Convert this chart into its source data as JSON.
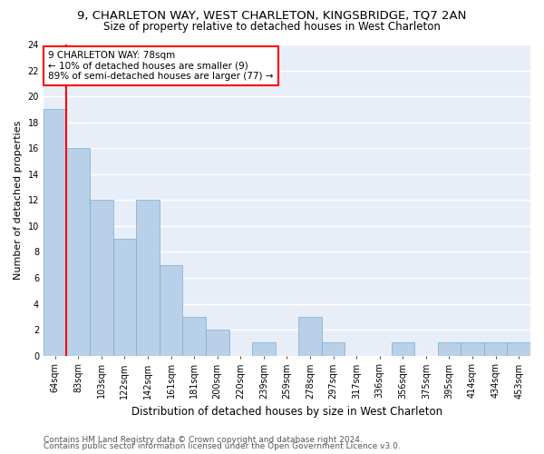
{
  "title1": "9, CHARLETON WAY, WEST CHARLETON, KINGSBRIDGE, TQ7 2AN",
  "title2": "Size of property relative to detached houses in West Charleton",
  "xlabel": "Distribution of detached houses by size in West Charleton",
  "ylabel": "Number of detached properties",
  "categories": [
    "64sqm",
    "83sqm",
    "103sqm",
    "122sqm",
    "142sqm",
    "161sqm",
    "181sqm",
    "200sqm",
    "220sqm",
    "239sqm",
    "259sqm",
    "278sqm",
    "297sqm",
    "317sqm",
    "336sqm",
    "356sqm",
    "375sqm",
    "395sqm",
    "414sqm",
    "434sqm",
    "453sqm"
  ],
  "values": [
    19,
    16,
    12,
    9,
    12,
    7,
    3,
    2,
    0,
    1,
    0,
    3,
    1,
    0,
    0,
    1,
    0,
    1,
    1,
    1,
    1
  ],
  "bar_color": "#b8d0e8",
  "bar_edgecolor": "#7aadd4",
  "bg_color": "#e8eef8",
  "grid_color": "#ffffff",
  "annotation_text": "9 CHARLETON WAY: 78sqm\n← 10% of detached houses are smaller (9)\n89% of semi-detached houses are larger (77) →",
  "annotation_box_color": "white",
  "annotation_box_edgecolor": "red",
  "vline_color": "red",
  "vline_x_index": 0.5,
  "ylim": [
    0,
    24
  ],
  "yticks": [
    0,
    2,
    4,
    6,
    8,
    10,
    12,
    14,
    16,
    18,
    20,
    22,
    24
  ],
  "footer1": "Contains HM Land Registry data © Crown copyright and database right 2024.",
  "footer2": "Contains public sector information licensed under the Open Government Licence v3.0.",
  "title1_fontsize": 9.5,
  "title2_fontsize": 8.5,
  "xlabel_fontsize": 8.5,
  "ylabel_fontsize": 8.0,
  "tick_fontsize": 7.0,
  "annotation_fontsize": 7.5,
  "footer_fontsize": 6.5
}
